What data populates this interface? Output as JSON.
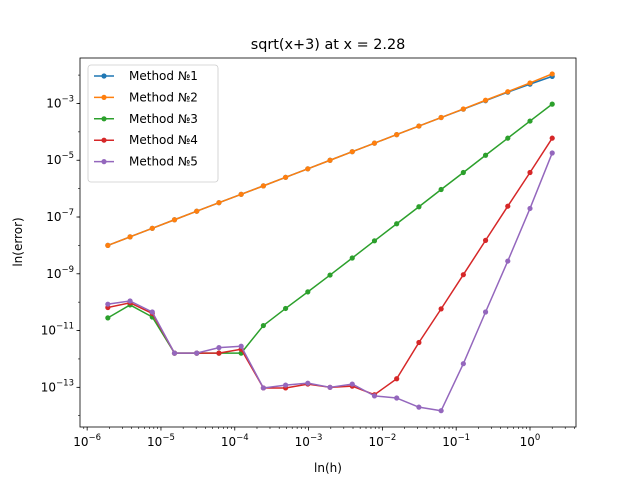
{
  "chart_data": {
    "type": "line",
    "title": "sqrt(x+3) at x = 2.28",
    "xlabel": "ln(h)",
    "ylabel": "ln(error)",
    "xscale": "log",
    "yscale": "log",
    "xlim": [
      8e-07,
      4.2
    ],
    "ylim": [
      4e-15,
      0.04
    ],
    "x_ticks": [
      {
        "value": 1e-06,
        "base": "10",
        "exp": "−6"
      },
      {
        "value": 1e-05,
        "base": "10",
        "exp": "−5"
      },
      {
        "value": 0.0001,
        "base": "10",
        "exp": "−4"
      },
      {
        "value": 0.001,
        "base": "10",
        "exp": "−3"
      },
      {
        "value": 0.01,
        "base": "10",
        "exp": "−2"
      },
      {
        "value": 0.1,
        "base": "10",
        "exp": "−1"
      },
      {
        "value": 1,
        "base": "10",
        "exp": "0"
      }
    ],
    "y_ticks": [
      {
        "value": 1e-13,
        "base": "10",
        "exp": "−13"
      },
      {
        "value": 1e-11,
        "base": "10",
        "exp": "−11"
      },
      {
        "value": 1e-09,
        "base": "10",
        "exp": "−9"
      },
      {
        "value": 1e-07,
        "base": "10",
        "exp": "−7"
      },
      {
        "value": 1e-05,
        "base": "10",
        "exp": "−5"
      },
      {
        "value": 0.001,
        "base": "10",
        "exp": "−3"
      }
    ],
    "grid": false,
    "legend_position": "top-left",
    "x": [
      1.9073e-06,
      3.8147e-06,
      7.6294e-06,
      1.5259e-05,
      3.0518e-05,
      6.1035e-05,
      0.00012207,
      0.00024414,
      0.00048828,
      0.00097656,
      0.0019531,
      0.0039063,
      0.0078125,
      0.015625,
      0.03125,
      0.0625,
      0.125,
      0.25,
      0.5,
      1,
      2
    ],
    "series": [
      {
        "name": "Method №1",
        "color": "#1f77b4",
        "values": [
          1e-08,
          2e-08,
          4e-08,
          8e-08,
          1.6e-07,
          3.2e-07,
          6.3e-07,
          1.25e-06,
          2.5e-06,
          5e-06,
          1e-05,
          2e-05,
          4e-05,
          8e-05,
          0.00016,
          0.00032,
          0.00063,
          0.00125,
          0.0025,
          0.0048,
          0.009
        ]
      },
      {
        "name": "Method №2",
        "color": "#ff7f0e",
        "values": [
          1e-08,
          2e-08,
          4e-08,
          8e-08,
          1.6e-07,
          3.2e-07,
          6.3e-07,
          1.25e-06,
          2.5e-06,
          5e-06,
          1e-05,
          2e-05,
          4e-05,
          8e-05,
          0.00016,
          0.00032,
          0.00064,
          0.0013,
          0.0026,
          0.0053,
          0.011
        ]
      },
      {
        "name": "Method №3",
        "color": "#2ca02c",
        "values": [
          2.8e-11,
          8e-11,
          3e-11,
          1.6e-12,
          1.6e-12,
          1.6e-12,
          1.6e-12,
          1.5e-11,
          6e-11,
          2.3e-10,
          9e-10,
          3.6e-09,
          1.45e-08,
          5.8e-08,
          2.3e-07,
          9.3e-07,
          3.7e-06,
          1.5e-05,
          6e-05,
          0.00024,
          0.00095
        ]
      },
      {
        "name": "Method №4",
        "color": "#d62728",
        "values": [
          6.5e-11,
          9.5e-11,
          4e-11,
          1.6e-12,
          1.6e-12,
          1.6e-12,
          2.2e-12,
          9.5e-14,
          9.5e-14,
          1.3e-13,
          1e-13,
          1.1e-13,
          5.5e-14,
          2e-13,
          3.8e-12,
          5.8e-11,
          9.3e-10,
          1.5e-08,
          2.4e-07,
          3.7e-06,
          6e-05
        ]
      },
      {
        "name": "Method №5",
        "color": "#9467bd",
        "values": [
          8.5e-11,
          1.1e-10,
          4.5e-11,
          1.6e-12,
          1.6e-12,
          2.5e-12,
          2.8e-12,
          9.5e-14,
          1.2e-13,
          1.4e-13,
          1e-13,
          1.3e-13,
          5e-14,
          4.2e-14,
          2e-14,
          1.5e-14,
          6.8e-13,
          4.5e-11,
          2.8e-09,
          2e-07,
          1.8e-05
        ]
      }
    ]
  }
}
